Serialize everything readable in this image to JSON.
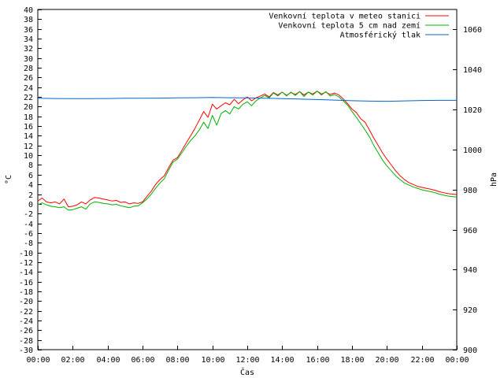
{
  "chart_data": {
    "type": "line",
    "xlabel": "Čas",
    "ylabel": "°C",
    "y2label": "hPa",
    "xlim": [
      0,
      24
    ],
    "ylim": [
      -30,
      40
    ],
    "y2lim": [
      900,
      1070
    ],
    "grid": false,
    "legend_position": "top-right",
    "x_ticks": [
      "00:00",
      "02:00",
      "04:00",
      "06:00",
      "08:00",
      "10:00",
      "12:00",
      "14:00",
      "16:00",
      "18:00",
      "20:00",
      "22:00",
      "00:00"
    ],
    "y_ticks": [
      -30,
      -28,
      -26,
      -24,
      -22,
      -20,
      -18,
      -16,
      -14,
      -12,
      -10,
      -8,
      -6,
      -4,
      -2,
      0,
      2,
      4,
      6,
      8,
      10,
      12,
      14,
      16,
      18,
      20,
      22,
      24,
      26,
      28,
      30,
      32,
      34,
      36,
      38,
      40
    ],
    "y2_ticks": [
      900,
      920,
      940,
      960,
      980,
      1000,
      1020,
      1040,
      1060
    ],
    "series": [
      {
        "name": "Venkovní teplota v meteo stanici",
        "color": "#ff0000",
        "axis": "left",
        "points": [
          [
            0,
            0.6
          ],
          [
            0.25,
            1.2
          ],
          [
            0.5,
            0.4
          ],
          [
            0.75,
            0.2
          ],
          [
            1.0,
            0.4
          ],
          [
            1.25,
            0.0
          ],
          [
            1.5,
            1.0
          ],
          [
            1.75,
            -0.6
          ],
          [
            2.0,
            -0.5
          ],
          [
            2.25,
            -0.2
          ],
          [
            2.5,
            0.4
          ],
          [
            2.75,
            0.0
          ],
          [
            3.0,
            0.8
          ],
          [
            3.25,
            1.3
          ],
          [
            3.5,
            1.2
          ],
          [
            3.75,
            1.0
          ],
          [
            4.0,
            0.8
          ],
          [
            4.25,
            0.6
          ],
          [
            4.5,
            0.7
          ],
          [
            4.75,
            0.3
          ],
          [
            5.0,
            0.4
          ],
          [
            5.25,
            0.0
          ],
          [
            5.5,
            0.2
          ],
          [
            5.75,
            0.1
          ],
          [
            6.0,
            0.4
          ],
          [
            6.25,
            1.5
          ],
          [
            6.5,
            2.6
          ],
          [
            6.75,
            4.0
          ],
          [
            7.0,
            5.0
          ],
          [
            7.25,
            5.8
          ],
          [
            7.5,
            7.5
          ],
          [
            7.75,
            9.0
          ],
          [
            8.0,
            9.5
          ],
          [
            8.25,
            11.0
          ],
          [
            8.5,
            12.5
          ],
          [
            8.75,
            14.0
          ],
          [
            9.0,
            15.5
          ],
          [
            9.25,
            17.2
          ],
          [
            9.5,
            19.0
          ],
          [
            9.75,
            17.8
          ],
          [
            10.0,
            20.5
          ],
          [
            10.25,
            19.5
          ],
          [
            10.5,
            20.2
          ],
          [
            10.75,
            20.8
          ],
          [
            11.0,
            20.4
          ],
          [
            11.25,
            21.5
          ],
          [
            11.5,
            20.6
          ],
          [
            11.75,
            21.4
          ],
          [
            12.0,
            22.0
          ],
          [
            12.25,
            21.2
          ],
          [
            12.5,
            21.8
          ],
          [
            12.75,
            22.2
          ],
          [
            13.0,
            22.6
          ],
          [
            13.25,
            22.0
          ],
          [
            13.5,
            22.9
          ],
          [
            13.75,
            22.4
          ],
          [
            14.0,
            23.0
          ],
          [
            14.25,
            22.3
          ],
          [
            14.5,
            22.9
          ],
          [
            14.75,
            22.5
          ],
          [
            15.0,
            23.1
          ],
          [
            15.25,
            22.4
          ],
          [
            15.5,
            23.0
          ],
          [
            15.75,
            22.6
          ],
          [
            16.0,
            23.2
          ],
          [
            16.25,
            22.6
          ],
          [
            16.5,
            23.0
          ],
          [
            16.75,
            22.5
          ],
          [
            17.0,
            22.8
          ],
          [
            17.25,
            22.4
          ],
          [
            17.5,
            21.6
          ],
          [
            17.75,
            20.6
          ],
          [
            18.0,
            19.5
          ],
          [
            18.25,
            18.8
          ],
          [
            18.5,
            17.5
          ],
          [
            18.75,
            16.8
          ],
          [
            19.0,
            15.2
          ],
          [
            19.25,
            13.5
          ],
          [
            19.5,
            12.0
          ],
          [
            19.75,
            10.5
          ],
          [
            20.0,
            9.2
          ],
          [
            20.25,
            8.0
          ],
          [
            20.5,
            6.8
          ],
          [
            20.75,
            5.8
          ],
          [
            21.0,
            5.0
          ],
          [
            21.25,
            4.4
          ],
          [
            21.5,
            4.0
          ],
          [
            21.75,
            3.6
          ],
          [
            22.0,
            3.4
          ],
          [
            22.25,
            3.2
          ],
          [
            22.5,
            3.0
          ],
          [
            22.75,
            2.8
          ],
          [
            23.0,
            2.5
          ],
          [
            23.25,
            2.3
          ],
          [
            23.5,
            2.1
          ],
          [
            23.75,
            2.0
          ],
          [
            24.0,
            1.9
          ]
        ]
      },
      {
        "name": "Venkovní teplota 5 cm nad zemí",
        "color": "#00b000",
        "axis": "left",
        "points": [
          [
            0,
            -0.2
          ],
          [
            0.25,
            0.2
          ],
          [
            0.5,
            -0.2
          ],
          [
            0.75,
            -0.5
          ],
          [
            1.0,
            -0.6
          ],
          [
            1.25,
            -0.8
          ],
          [
            1.5,
            -0.6
          ],
          [
            1.75,
            -1.3
          ],
          [
            2.0,
            -1.2
          ],
          [
            2.25,
            -0.9
          ],
          [
            2.5,
            -0.6
          ],
          [
            2.75,
            -1.1
          ],
          [
            3.0,
            0.0
          ],
          [
            3.25,
            0.4
          ],
          [
            3.5,
            0.3
          ],
          [
            3.75,
            0.1
          ],
          [
            4.0,
            0.0
          ],
          [
            4.25,
            -0.2
          ],
          [
            4.5,
            -0.1
          ],
          [
            4.75,
            -0.4
          ],
          [
            5.0,
            -0.6
          ],
          [
            5.25,
            -0.8
          ],
          [
            5.5,
            -0.5
          ],
          [
            5.75,
            -0.4
          ],
          [
            6.0,
            0.2
          ],
          [
            6.25,
            1.0
          ],
          [
            6.5,
            2.0
          ],
          [
            6.75,
            3.2
          ],
          [
            7.0,
            4.3
          ],
          [
            7.25,
            5.2
          ],
          [
            7.5,
            7.0
          ],
          [
            7.75,
            8.6
          ],
          [
            8.0,
            9.2
          ],
          [
            8.25,
            10.5
          ],
          [
            8.5,
            11.8
          ],
          [
            8.75,
            13.0
          ],
          [
            9.0,
            14.0
          ],
          [
            9.25,
            15.2
          ],
          [
            9.5,
            16.8
          ],
          [
            9.75,
            15.5
          ],
          [
            10.0,
            18.2
          ],
          [
            10.25,
            16.2
          ],
          [
            10.5,
            18.6
          ],
          [
            10.75,
            19.2
          ],
          [
            11.0,
            18.5
          ],
          [
            11.25,
            20.0
          ],
          [
            11.5,
            19.5
          ],
          [
            11.75,
            20.5
          ],
          [
            12.0,
            21.0
          ],
          [
            12.25,
            20.2
          ],
          [
            12.5,
            21.2
          ],
          [
            12.75,
            21.8
          ],
          [
            13.0,
            22.3
          ],
          [
            13.25,
            21.8
          ],
          [
            13.5,
            22.8
          ],
          [
            13.75,
            22.2
          ],
          [
            14.0,
            23.0
          ],
          [
            14.25,
            22.2
          ],
          [
            14.5,
            23.0
          ],
          [
            14.75,
            22.3
          ],
          [
            15.0,
            23.1
          ],
          [
            15.25,
            22.1
          ],
          [
            15.5,
            23.0
          ],
          [
            15.75,
            22.4
          ],
          [
            16.0,
            23.2
          ],
          [
            16.25,
            22.4
          ],
          [
            16.5,
            23.1
          ],
          [
            16.75,
            22.2
          ],
          [
            17.0,
            22.5
          ],
          [
            17.25,
            22.0
          ],
          [
            17.5,
            21.2
          ],
          [
            17.75,
            20.3
          ],
          [
            18.0,
            19.0
          ],
          [
            18.25,
            17.8
          ],
          [
            18.5,
            16.5
          ],
          [
            18.75,
            15.2
          ],
          [
            19.0,
            13.8
          ],
          [
            19.25,
            12.0
          ],
          [
            19.5,
            10.5
          ],
          [
            19.75,
            9.0
          ],
          [
            20.0,
            7.8
          ],
          [
            20.25,
            6.8
          ],
          [
            20.5,
            5.8
          ],
          [
            20.75,
            5.0
          ],
          [
            21.0,
            4.3
          ],
          [
            21.25,
            3.9
          ],
          [
            21.5,
            3.5
          ],
          [
            21.75,
            3.2
          ],
          [
            22.0,
            2.9
          ],
          [
            22.25,
            2.7
          ],
          [
            22.5,
            2.5
          ],
          [
            22.75,
            2.3
          ],
          [
            23.0,
            2.0
          ],
          [
            23.25,
            1.8
          ],
          [
            23.5,
            1.6
          ],
          [
            23.75,
            1.5
          ],
          [
            24.0,
            1.4
          ]
        ]
      },
      {
        "name": "Atmosférický tlak",
        "color": "#0066cc",
        "axis": "right",
        "points": [
          [
            0,
            1025.6
          ],
          [
            1,
            1025.5
          ],
          [
            2,
            1025.4
          ],
          [
            3,
            1025.4
          ],
          [
            4,
            1025.5
          ],
          [
            5,
            1025.6
          ],
          [
            6,
            1025.6
          ],
          [
            7,
            1025.7
          ],
          [
            8,
            1025.8
          ],
          [
            9,
            1025.9
          ],
          [
            10,
            1026.0
          ],
          [
            11,
            1025.9
          ],
          [
            12,
            1025.8
          ],
          [
            13,
            1025.6
          ],
          [
            14,
            1025.4
          ],
          [
            15,
            1025.2
          ],
          [
            16,
            1025.0
          ],
          [
            17,
            1024.7
          ],
          [
            18,
            1024.4
          ],
          [
            19,
            1024.2
          ],
          [
            20,
            1024.1
          ],
          [
            21,
            1024.3
          ],
          [
            22,
            1024.5
          ],
          [
            23,
            1024.6
          ],
          [
            24,
            1024.6
          ]
        ]
      }
    ]
  }
}
